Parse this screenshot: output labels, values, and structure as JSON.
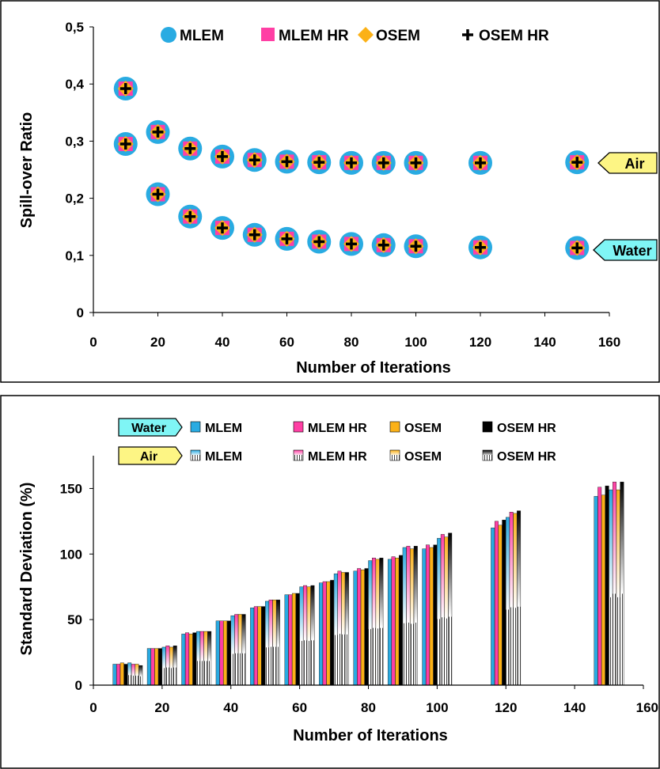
{
  "chart_data": [
    {
      "type": "scatter",
      "title": "",
      "xlabel": "Number of Iterations",
      "ylabel": "Spill-over Ratio",
      "xlim": [
        0,
        160
      ],
      "ylim": [
        0,
        0.5
      ],
      "xticks": [
        "0",
        "20",
        "40",
        "60",
        "80",
        "100",
        "120",
        "140",
        "160"
      ],
      "yticks": [
        "0",
        "0,1",
        "0,2",
        "0,3",
        "0,4",
        "0,5"
      ],
      "grid": false,
      "legend_position": "top",
      "legend": [
        "MLEM",
        "MLEM HR",
        "OSEM",
        "OSEM HR"
      ],
      "colors": {
        "MLEM": "#29abe2",
        "MLEM HR": "#ff3fa4",
        "OSEM": "#fbb117",
        "OSEM HR": "#000000"
      },
      "x": [
        10,
        20,
        30,
        40,
        50,
        60,
        70,
        80,
        90,
        100,
        120,
        150
      ],
      "groups": [
        {
          "name": "Air",
          "values": [
            0.295,
            0.316,
            0.287,
            0.273,
            0.267,
            0.264,
            0.263,
            0.262,
            0.262,
            0.262,
            0.262,
            0.263
          ]
        },
        {
          "name": "Water",
          "values": [
            0.392,
            0.207,
            0.168,
            0.148,
            0.136,
            0.129,
            0.124,
            0.12,
            0.118,
            0.116,
            0.114,
            0.113
          ]
        }
      ],
      "annotations": [
        "Air",
        "Water"
      ]
    },
    {
      "type": "bar",
      "title": "",
      "xlabel": "Number of Iterations",
      "ylabel": "Standard Deviation (%)",
      "xlim": [
        0,
        160
      ],
      "ylim": [
        0,
        175
      ],
      "xticks": [
        "0",
        "20",
        "40",
        "60",
        "80",
        "100",
        "120",
        "140",
        "160"
      ],
      "yticks": [
        "0",
        "50",
        "100",
        "150"
      ],
      "grid": false,
      "legend_position": "top",
      "legend_groups": [
        {
          "name": "Water",
          "entries": [
            "MLEM",
            "MLEM HR",
            "OSEM",
            "OSEM HR"
          ]
        },
        {
          "name": "Air",
          "entries": [
            "MLEM",
            "MLEM HR",
            "OSEM",
            "OSEM HR"
          ]
        }
      ],
      "x": [
        10,
        20,
        30,
        40,
        50,
        60,
        70,
        80,
        90,
        100,
        120,
        150
      ],
      "series": [
        {
          "group": "Water",
          "method": "MLEM",
          "values": [
            16,
            28,
            39,
            49,
            59,
            69,
            78,
            87,
            96,
            104,
            120,
            144
          ]
        },
        {
          "group": "Water",
          "method": "MLEM HR",
          "values": [
            16,
            28,
            40,
            49,
            60,
            69,
            79,
            89,
            98,
            107,
            125,
            151
          ]
        },
        {
          "group": "Water",
          "method": "OSEM",
          "values": [
            17,
            28,
            39,
            49,
            60,
            70,
            79,
            88,
            97,
            105,
            122,
            145
          ]
        },
        {
          "group": "Water",
          "method": "OSEM HR",
          "values": [
            16,
            28,
            40,
            49,
            60,
            70,
            80,
            89,
            99,
            107,
            126,
            152
          ]
        },
        {
          "group": "Air",
          "method": "MLEM",
          "values": [
            17,
            29,
            41,
            53,
            64,
            75,
            85,
            95,
            105,
            112,
            128,
            149
          ]
        },
        {
          "group": "Air",
          "method": "MLEM HR",
          "values": [
            16,
            30,
            41,
            54,
            65,
            76,
            87,
            97,
            106,
            115,
            132,
            155
          ]
        },
        {
          "group": "Air",
          "method": "OSEM",
          "values": [
            16,
            29,
            41,
            54,
            65,
            75,
            86,
            96,
            104,
            113,
            131,
            149
          ]
        },
        {
          "group": "Air",
          "method": "OSEM HR",
          "values": [
            15,
            30,
            41,
            54,
            65,
            76,
            86,
            97,
            106,
            116,
            133,
            155
          ]
        }
      ]
    }
  ]
}
